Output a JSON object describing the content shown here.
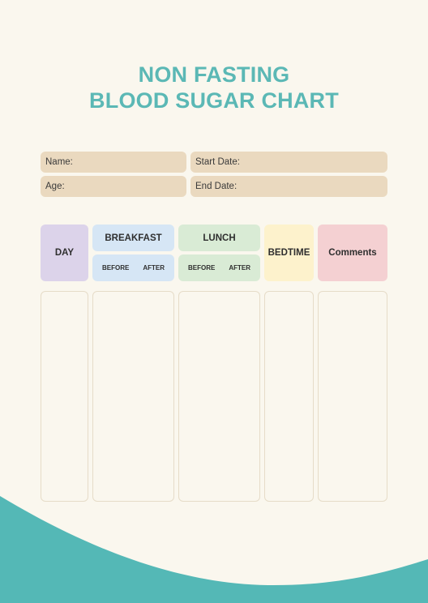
{
  "title": {
    "line1": "NON FASTING",
    "line2": "BLOOD SUGAR CHART"
  },
  "fields": {
    "name_label": "Name:",
    "start_date_label": "Start Date:",
    "age_label": "Age:",
    "end_date_label": "End Date:"
  },
  "table": {
    "day": "DAY",
    "breakfast": "BREAKFAST",
    "lunch": "LUNCH",
    "bedtime": "BEDTIME",
    "comments": "Comments",
    "before": "BEFORE",
    "after": "AFTER"
  },
  "colors": {
    "title": "#5bb8b5",
    "wave": "#54b8b6",
    "background": "#faf7ee",
    "field": "#ead9bf",
    "day": "#dcd3ea",
    "breakfast": "#d6e6f5",
    "lunch": "#d9ebd5",
    "bedtime": "#fdf2cc",
    "comments": "#f4d0d2"
  }
}
